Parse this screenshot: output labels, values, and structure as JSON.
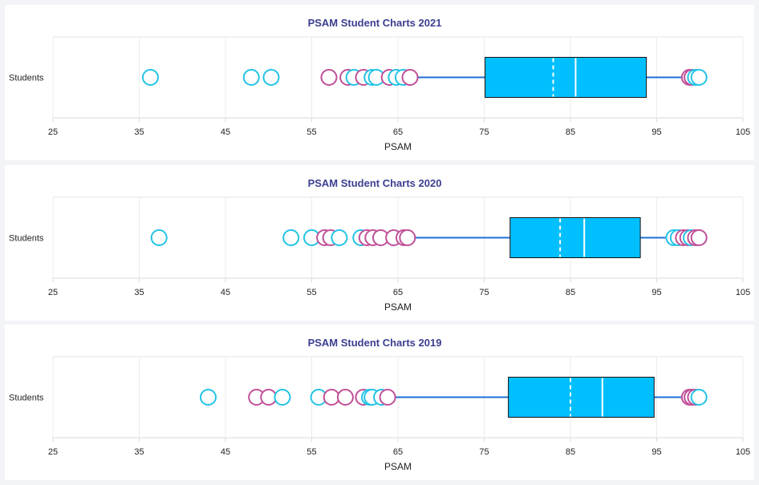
{
  "chart_data": [
    {
      "type": "box",
      "title": "PSAM Student Charts 2021",
      "category": "Students",
      "xlabel": "PSAM",
      "xlim": [
        25,
        105
      ],
      "xticks": [
        25,
        35,
        45,
        55,
        65,
        75,
        85,
        95,
        105
      ],
      "box": {
        "whisker_low": 66.3,
        "q1": 75.1,
        "mean": 83.0,
        "median": 85.6,
        "q3": 93.8,
        "whisker_high": 98.6
      },
      "outliers": [
        {
          "x": 36.3,
          "color": "cyan"
        },
        {
          "x": 48.0,
          "color": "cyan"
        },
        {
          "x": 50.3,
          "color": "cyan"
        },
        {
          "x": 57.0,
          "color": "magenta"
        },
        {
          "x": 59.2,
          "color": "magenta"
        },
        {
          "x": 59.9,
          "color": "cyan"
        },
        {
          "x": 61.0,
          "color": "magenta"
        },
        {
          "x": 62.0,
          "color": "cyan"
        },
        {
          "x": 62.5,
          "color": "cyan"
        },
        {
          "x": 64.0,
          "color": "magenta"
        },
        {
          "x": 64.8,
          "color": "cyan"
        },
        {
          "x": 65.6,
          "color": "cyan"
        },
        {
          "x": 66.4,
          "color": "magenta"
        },
        {
          "x": 98.8,
          "color": "magenta"
        },
        {
          "x": 99.1,
          "color": "magenta"
        },
        {
          "x": 99.5,
          "color": "cyan"
        },
        {
          "x": 99.9,
          "color": "cyan"
        }
      ]
    },
    {
      "type": "box",
      "title": "PSAM Student Charts 2020",
      "category": "Students",
      "xlabel": "PSAM",
      "xlim": [
        25,
        105
      ],
      "xticks": [
        25,
        35,
        45,
        55,
        65,
        75,
        85,
        95,
        105
      ],
      "box": {
        "whisker_low": 66.2,
        "q1": 78.0,
        "mean": 83.8,
        "median": 86.6,
        "q3": 93.1,
        "whisker_high": 96.6
      },
      "outliers": [
        {
          "x": 37.3,
          "color": "cyan"
        },
        {
          "x": 52.6,
          "color": "cyan"
        },
        {
          "x": 55.0,
          "color": "cyan"
        },
        {
          "x": 56.5,
          "color": "magenta"
        },
        {
          "x": 57.2,
          "color": "magenta"
        },
        {
          "x": 58.2,
          "color": "cyan"
        },
        {
          "x": 60.7,
          "color": "cyan"
        },
        {
          "x": 61.4,
          "color": "magenta"
        },
        {
          "x": 62.1,
          "color": "magenta"
        },
        {
          "x": 63.0,
          "color": "magenta"
        },
        {
          "x": 64.5,
          "color": "magenta"
        },
        {
          "x": 65.7,
          "color": "magenta"
        },
        {
          "x": 66.1,
          "color": "magenta"
        },
        {
          "x": 97.0,
          "color": "cyan"
        },
        {
          "x": 97.5,
          "color": "cyan"
        },
        {
          "x": 98.1,
          "color": "magenta"
        },
        {
          "x": 98.6,
          "color": "magenta"
        },
        {
          "x": 99.0,
          "color": "cyan"
        },
        {
          "x": 99.5,
          "color": "magenta"
        },
        {
          "x": 99.9,
          "color": "magenta"
        }
      ]
    },
    {
      "type": "box",
      "title": "PSAM Student Charts 2019",
      "category": "Students",
      "xlabel": "PSAM",
      "xlim": [
        25,
        105
      ],
      "xticks": [
        25,
        35,
        45,
        55,
        65,
        75,
        85,
        95,
        105
      ],
      "box": {
        "whisker_low": 63.9,
        "q1": 77.8,
        "mean": 85.0,
        "median": 88.7,
        "q3": 94.7,
        "whisker_high": 98.6
      },
      "outliers": [
        {
          "x": 43.0,
          "color": "cyan"
        },
        {
          "x": 48.6,
          "color": "magenta"
        },
        {
          "x": 50.0,
          "color": "magenta"
        },
        {
          "x": 51.6,
          "color": "cyan"
        },
        {
          "x": 55.8,
          "color": "cyan"
        },
        {
          "x": 57.3,
          "color": "magenta"
        },
        {
          "x": 58.9,
          "color": "magenta"
        },
        {
          "x": 61.0,
          "color": "magenta"
        },
        {
          "x": 61.7,
          "color": "cyan"
        },
        {
          "x": 62.0,
          "color": "cyan"
        },
        {
          "x": 63.1,
          "color": "cyan"
        },
        {
          "x": 63.8,
          "color": "magenta"
        },
        {
          "x": 98.8,
          "color": "magenta"
        },
        {
          "x": 99.1,
          "color": "magenta"
        },
        {
          "x": 99.5,
          "color": "magenta"
        },
        {
          "x": 99.9,
          "color": "cyan"
        }
      ]
    }
  ],
  "colors": {
    "box_fill": "#00bfff",
    "whisker": "#1f6fd6",
    "cyan": "#22c3e6",
    "magenta": "#c04f98",
    "title": "#3b3f8f"
  }
}
